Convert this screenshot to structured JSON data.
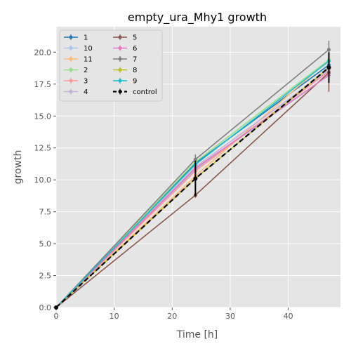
{
  "chart_data": {
    "type": "line",
    "title": "empty_ura_Mhy1 growth",
    "xlabel": "Time [h]",
    "ylabel": "growth",
    "xlim": [
      0,
      49
    ],
    "ylim": [
      0,
      22
    ],
    "xticks": [
      0,
      10,
      20,
      30,
      40
    ],
    "yticks": [
      0.0,
      2.5,
      5.0,
      7.5,
      10.0,
      12.5,
      15.0,
      17.5,
      20.0
    ],
    "xtick_labels": [
      "0",
      "10",
      "20",
      "30",
      "40"
    ],
    "ytick_labels": [
      "0.0",
      "2.5",
      "5.0",
      "7.5",
      "10.0",
      "12.5",
      "15.0",
      "17.5",
      "20.0"
    ],
    "grid": true,
    "legend_position": "top-left",
    "legend_columns": 2,
    "x": [
      0,
      24,
      47
    ],
    "series": [
      {
        "name": "1",
        "color": "#1f77b4",
        "values": [
          0,
          11.3,
          19.0
        ],
        "errors": [
          0,
          0.3,
          0.5
        ]
      },
      {
        "name": "10",
        "color": "#aec7e8",
        "values": [
          0,
          10.8,
          18.2
        ],
        "errors": [
          0,
          0.3,
          0.5
        ]
      },
      {
        "name": "11",
        "color": "#ffbb78",
        "values": [
          0,
          10.3,
          19.4
        ],
        "errors": [
          0,
          0.3,
          0.5
        ]
      },
      {
        "name": "2",
        "color": "#98df8a",
        "values": [
          0,
          11.4,
          19.4
        ],
        "errors": [
          0,
          0.3,
          0.5
        ]
      },
      {
        "name": "3",
        "color": "#ff9896",
        "values": [
          0,
          10.7,
          18.5
        ],
        "errors": [
          0,
          0.3,
          0.5
        ]
      },
      {
        "name": "4",
        "color": "#c5b0d5",
        "values": [
          0,
          11.0,
          18.6
        ],
        "errors": [
          0,
          0.3,
          0.5
        ]
      },
      {
        "name": "5",
        "color": "#8c564b",
        "values": [
          0,
          8.8,
          18.4
        ],
        "errors": [
          0,
          0.2,
          1.5
        ]
      },
      {
        "name": "6",
        "color": "#e377c2",
        "values": [
          0,
          10.9,
          18.2
        ],
        "errors": [
          0,
          0.3,
          0.5
        ]
      },
      {
        "name": "7",
        "color": "#7f7f7f",
        "values": [
          0,
          11.6,
          20.2
        ],
        "errors": [
          0,
          0.4,
          0.7
        ]
      },
      {
        "name": "8",
        "color": "#bcbd22",
        "values": [
          0,
          10.1,
          18.8
        ],
        "errors": [
          0,
          0.3,
          0.5
        ]
      },
      {
        "name": "9",
        "color": "#17becf",
        "values": [
          0,
          11.2,
          19.3
        ],
        "errors": [
          0,
          0.3,
          0.5
        ]
      },
      {
        "name": "control",
        "color": "#000000",
        "dashed": true,
        "values": [
          0,
          10.1,
          18.8
        ],
        "errors": [
          0,
          1.4,
          1.2
        ]
      }
    ]
  }
}
